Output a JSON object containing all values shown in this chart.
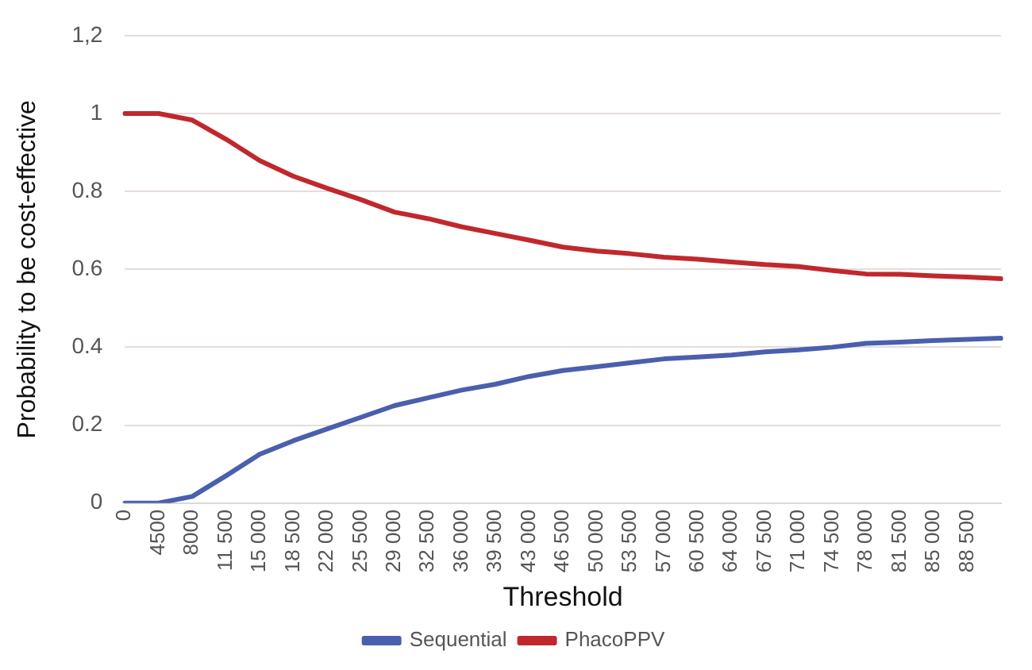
{
  "chart_data": {
    "type": "line",
    "xlabel": "Threshold",
    "ylabel": "Probability to be cost-effective",
    "categories": [
      "0",
      "4500",
      "8000",
      "11 500",
      "15 000",
      "18 500",
      "22 000",
      "25 500",
      "29 000",
      "32 500",
      "36 000",
      "39 500",
      "43 000",
      "46 500",
      "50 000",
      "53 500",
      "57 000",
      "60 500",
      "64 000",
      "67 500",
      "71 000",
      "74 500",
      "78 000",
      "81 500",
      "85 000",
      "88 500",
      null
    ],
    "series": [
      {
        "name": "Sequential",
        "color": "#4a5fae",
        "values": [
          0,
          0,
          0.017,
          0.07,
          0.125,
          0.16,
          0.19,
          0.22,
          0.25,
          0.27,
          0.29,
          0.305,
          0.325,
          0.34,
          0.35,
          0.36,
          0.37,
          0.375,
          0.38,
          0.388,
          0.393,
          0.4,
          0.41,
          0.413,
          0.417,
          0.42,
          0.423
        ]
      },
      {
        "name": "PhacoPPV",
        "color": "#c0282d",
        "values": [
          1,
          1,
          0.983,
          0.934,
          0.879,
          0.839,
          0.808,
          0.779,
          0.747,
          0.73,
          0.709,
          0.692,
          0.675,
          0.657,
          0.647,
          0.64,
          0.631,
          0.626,
          0.619,
          0.612,
          0.607,
          0.597,
          0.588,
          0.587,
          0.583,
          0.58,
          0.576
        ]
      }
    ],
    "ylim": [
      0,
      1.2
    ],
    "yticks": [
      0,
      0.2,
      0.4,
      0.6,
      0.8,
      1,
      {
        "value": 1.2,
        "label": "1,2"
      }
    ],
    "grid": "y",
    "legend": "bottom",
    "marker": "none",
    "line_style": "solid"
  }
}
